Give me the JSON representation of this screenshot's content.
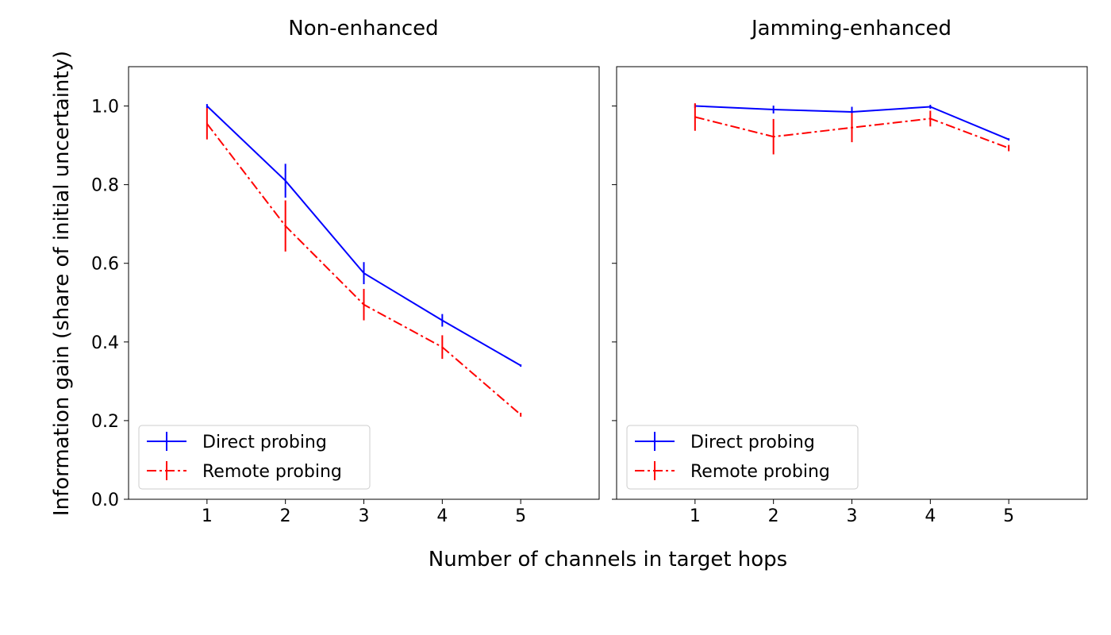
{
  "figure": {
    "ylabel": "Information gain (share of initial uncertainty)",
    "xlabel": "Number of channels in target hops"
  },
  "colors": {
    "direct": "#0000ff",
    "remote": "#ff0000",
    "axes": "#000000",
    "legend_border": "#cccccc"
  },
  "chart_data": [
    {
      "type": "line",
      "title": "Non-enhanced",
      "xlabel": "Number of channels in target hops",
      "ylabel": "Information gain (share of initial uncertainty)",
      "xlim": [
        0,
        6
      ],
      "ylim": [
        0,
        1.1
      ],
      "xticks": [
        "1",
        "2",
        "3",
        "4",
        "5"
      ],
      "yticks": [
        "0.0",
        "0.2",
        "0.4",
        "0.6",
        "0.8",
        "1.0"
      ],
      "grid": false,
      "legend": "lower-left",
      "x": [
        1,
        2,
        3,
        4,
        5
      ],
      "series": [
        {
          "name": "Direct probing",
          "style": "solid",
          "color": "#0000ff",
          "values": [
            1.0,
            0.81,
            0.575,
            0.455,
            0.34
          ],
          "errors": [
            0.005,
            0.043,
            0.028,
            0.016,
            0.003
          ]
        },
        {
          "name": "Remote probing",
          "style": "dash-dot",
          "color": "#ff0000",
          "values": [
            0.955,
            0.695,
            0.495,
            0.387,
            0.215
          ],
          "errors": [
            0.04,
            0.065,
            0.04,
            0.03,
            0.005
          ]
        }
      ]
    },
    {
      "type": "line",
      "title": "Jamming-enhanced",
      "xlabel": "Number of channels in target hops",
      "ylabel": "",
      "xlim": [
        0,
        6
      ],
      "ylim": [
        0,
        1.1
      ],
      "xticks": [
        "1",
        "2",
        "3",
        "4",
        "5"
      ],
      "yticks": [],
      "grid": false,
      "legend": "lower-left",
      "x": [
        1,
        2,
        3,
        4,
        5
      ],
      "series": [
        {
          "name": "Direct probing",
          "style": "solid",
          "color": "#0000ff",
          "values": [
            1.0,
            0.991,
            0.985,
            0.998,
            0.915
          ],
          "errors": [
            0.005,
            0.01,
            0.013,
            0.005,
            0.003
          ]
        },
        {
          "name": "Remote probing",
          "style": "dash-dot",
          "color": "#ff0000",
          "values": [
            0.972,
            0.922,
            0.945,
            0.968,
            0.893
          ],
          "errors": [
            0.035,
            0.045,
            0.037,
            0.02,
            0.008
          ]
        }
      ]
    }
  ]
}
